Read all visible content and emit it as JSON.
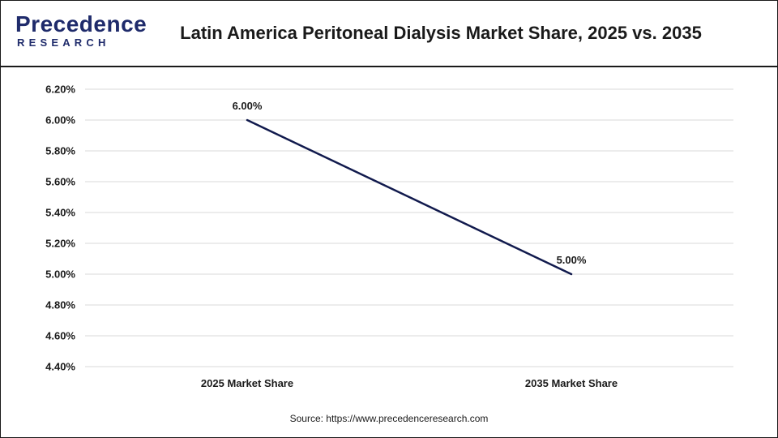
{
  "header": {
    "logo_word": "Precedence",
    "logo_sub": "RESEARCH",
    "title": "Latin America Peritoneal Dialysis Market Share, 2025 vs. 2035"
  },
  "source": "Source: https://www.precedenceresearch.com",
  "colors": {
    "line": "#111a4d",
    "grid": "#d9d9d9",
    "brand": "#1f2b6b",
    "accent": "#e0352b"
  },
  "chart_data": {
    "type": "line",
    "title": "Latin America Peritoneal Dialysis Market Share, 2025 vs. 2035",
    "categories": [
      "2025 Market Share",
      "2035 Market Share"
    ],
    "series": [
      {
        "values": [
          6.0,
          5.0
        ],
        "labels": [
          "6.00%",
          "5.00%"
        ]
      }
    ],
    "ylim": [
      4.4,
      6.2
    ],
    "yticks": [
      {
        "value": 6.2,
        "label": "6.20%"
      },
      {
        "value": 6.0,
        "label": "6.00%"
      },
      {
        "value": 5.8,
        "label": "5.80%"
      },
      {
        "value": 5.6,
        "label": "5.60%"
      },
      {
        "value": 5.4,
        "label": "5.40%"
      },
      {
        "value": 5.2,
        "label": "5.20%"
      },
      {
        "value": 5.0,
        "label": "5.00%"
      },
      {
        "value": 4.8,
        "label": "4.80%"
      },
      {
        "value": 4.6,
        "label": "4.60%"
      },
      {
        "value": 4.4,
        "label": "4.40%"
      }
    ],
    "grid": true,
    "legend": "none"
  }
}
